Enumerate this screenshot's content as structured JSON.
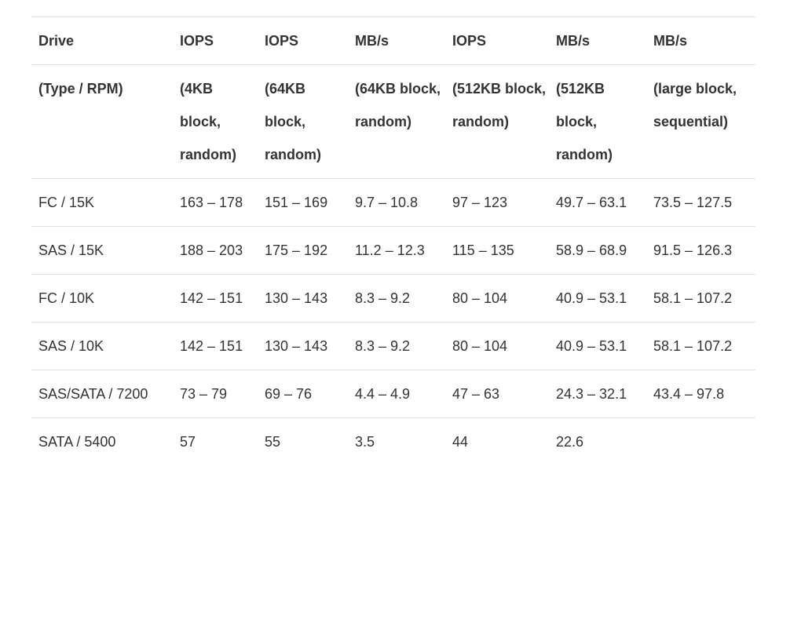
{
  "header_row_1": [
    "Drive",
    "IOPS",
    "IOPS",
    "MB/s",
    "IOPS",
    "MB/s",
    "MB/s"
  ],
  "header_row_2": [
    "(Type / RPM)",
    "(4KB block, random)",
    "(64KB block, random)",
    "(64KB block, random)",
    "(512KB block, random)",
    "(512KB block, random)",
    "(large block, sequential)"
  ],
  "rows": [
    [
      "FC / 15K",
      "163 – 178",
      "151 – 169",
      "9.7 – 10.8",
      "97 – 123",
      "49.7 – 63.1",
      "73.5 – 127.5"
    ],
    [
      "SAS / 15K",
      "188 – 203",
      "175 – 192",
      "11.2 – 12.3",
      "115 – 135",
      "58.9 – 68.9",
      "91.5 – 126.3"
    ],
    [
      "FC / 10K",
      "142 – 151",
      "130 – 143",
      "8.3 – 9.2",
      "80 – 104",
      "40.9 – 53.1",
      "58.1 – 107.2"
    ],
    [
      "SAS / 10K",
      "142 – 151",
      "130 – 143",
      "8.3 – 9.2",
      "80 – 104",
      "40.9 – 53.1",
      "58.1 – 107.2"
    ],
    [
      "SAS/SATA / 7200",
      "73 – 79",
      "69 – 76",
      "4.4 – 4.9",
      "47 – 63",
      "24.3 – 32.1",
      "43.4 – 97.8"
    ],
    [
      "SATA / 5400",
      "57",
      "55",
      "3.5",
      "44",
      "22.6",
      ""
    ]
  ]
}
